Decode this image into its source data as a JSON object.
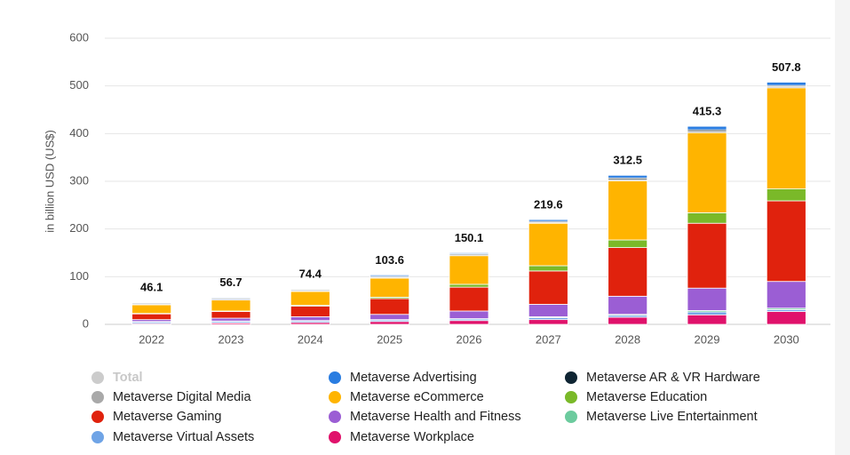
{
  "chart_data": {
    "type": "stacked-bar",
    "ylabel": "in billion USD (US$)",
    "categories": [
      "2022",
      "2023",
      "2024",
      "2025",
      "2026",
      "2027",
      "2028",
      "2029",
      "2030"
    ],
    "ylim": [
      0,
      600
    ],
    "yticks": [
      0,
      100,
      200,
      300,
      400,
      500,
      600
    ],
    "grid": true,
    "series": [
      {
        "name": "Total",
        "color": "#cccccc",
        "hidden": true,
        "values": [
          46.1,
          56.7,
          74.4,
          103.6,
          150.1,
          219.6,
          312.5,
          415.3,
          507.8
        ]
      },
      {
        "name": "Metaverse Advertising",
        "color": "#2a7de1",
        "values": [
          1.1,
          1.7,
          1.4,
          2.6,
          2.1,
          3.6,
          5.5,
          7.3,
          6.8
        ]
      },
      {
        "name": "Metaverse AR & VR Hardware",
        "color": "#0f2533",
        "values": [
          2,
          2,
          2,
          2,
          2,
          2,
          3,
          3,
          2
        ]
      },
      {
        "name": "Metaverse Digital Media",
        "color": "#a9a9a9",
        "values": [
          2,
          2,
          2,
          2,
          2,
          2,
          3,
          3,
          3
        ]
      },
      {
        "name": "Metaverse eCommerce",
        "color": "#ffb400",
        "values": [
          18,
          23,
          29,
          40,
          60,
          89,
          124,
          168,
          212
        ]
      },
      {
        "name": "Metaverse Education",
        "color": "#7ab929",
        "values": [
          1,
          1,
          2,
          3,
          6,
          11,
          16,
          22,
          25
        ]
      },
      {
        "name": "Metaverse Gaming",
        "color": "#e0220d",
        "values": [
          12,
          14,
          22,
          33,
          50,
          70,
          102,
          136,
          169
        ]
      },
      {
        "name": "Metaverse Health and Fitness",
        "color": "#9b5ed4",
        "values": [
          4,
          6,
          8,
          11,
          16,
          26,
          38,
          47,
          56
        ]
      },
      {
        "name": "Metaverse Live Entertainment",
        "color": "#6ccb9e",
        "values": [
          1,
          1,
          1,
          1,
          1,
          2,
          2,
          3,
          3
        ]
      },
      {
        "name": "Metaverse Virtual Assets",
        "color": "#6fa4e6",
        "values": [
          3,
          3,
          3,
          3,
          3,
          4,
          4,
          6,
          4
        ]
      },
      {
        "name": "Metaverse Workplace",
        "color": "#e0126b",
        "values": [
          2,
          3,
          4,
          6,
          8,
          10,
          15,
          20,
          27
        ]
      }
    ]
  }
}
